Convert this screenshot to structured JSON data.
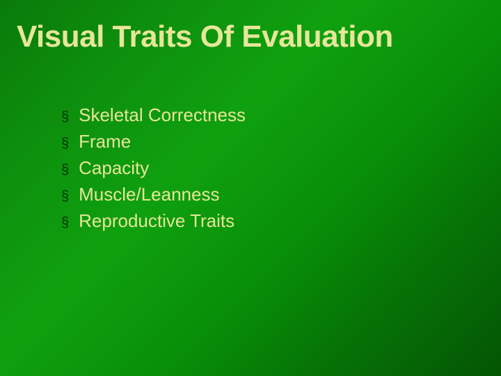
{
  "slide": {
    "title": "Visual Traits Of Evaluation",
    "title_color": "#e6e69a",
    "title_fontsize": 44,
    "bullet_char": "§",
    "bullet_color": "#003300",
    "bullet_fontsize": 20,
    "item_color": "#e6e69a",
    "item_fontsize": 26,
    "item_line_height": 38,
    "items": [
      "Skeletal Correctness",
      "Frame",
      "Capacity",
      "Muscle/Leanness",
      "Reproductive Traits"
    ]
  }
}
